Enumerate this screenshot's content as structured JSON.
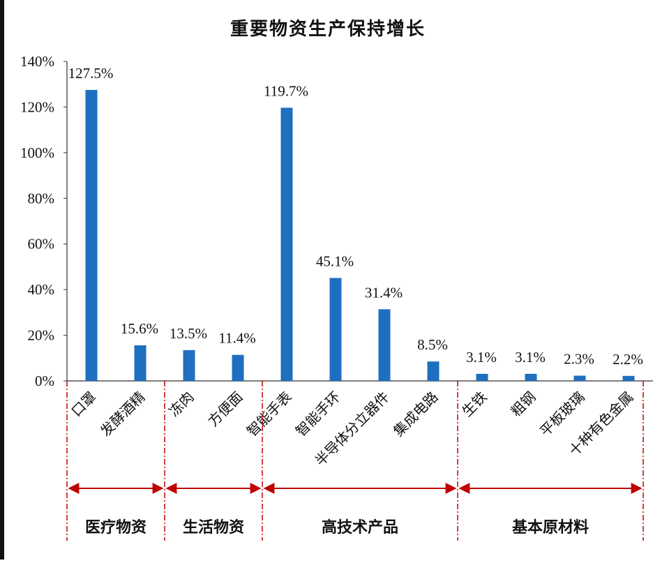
{
  "chart_data": {
    "type": "bar",
    "title": "重要物资生产保持增长",
    "categories": [
      "口罩",
      "发酵酒精",
      "冻肉",
      "方便面",
      "智能手表",
      "智能手环",
      "半导体分立器件",
      "集成电路",
      "生铁",
      "粗钢",
      "平板玻璃",
      "十种有色金属"
    ],
    "values": [
      127.5,
      15.6,
      13.5,
      11.4,
      119.7,
      45.1,
      31.4,
      8.5,
      3.1,
      3.1,
      2.3,
      2.2
    ],
    "value_labels": [
      "127.5%",
      "15.6%",
      "13.5%",
      "11.4%",
      "119.7%",
      "45.1%",
      "31.4%",
      "8.5%",
      "3.1%",
      "3.1%",
      "2.3%",
      "2.2%"
    ],
    "ylim": [
      0,
      140
    ],
    "yticks": [
      "0%",
      "20%",
      "40%",
      "60%",
      "80%",
      "100%",
      "120%",
      "140%"
    ],
    "bar_color": "#1f6fc0",
    "annotation_color": "#c00000",
    "grid": false,
    "groups": [
      {
        "label": "医疗物资",
        "start": 0,
        "end": 2
      },
      {
        "label": "生活物资",
        "start": 2,
        "end": 4
      },
      {
        "label": "高技术产品",
        "start": 4,
        "end": 8
      },
      {
        "label": "基本原材料",
        "start": 8,
        "end": 12
      }
    ]
  }
}
